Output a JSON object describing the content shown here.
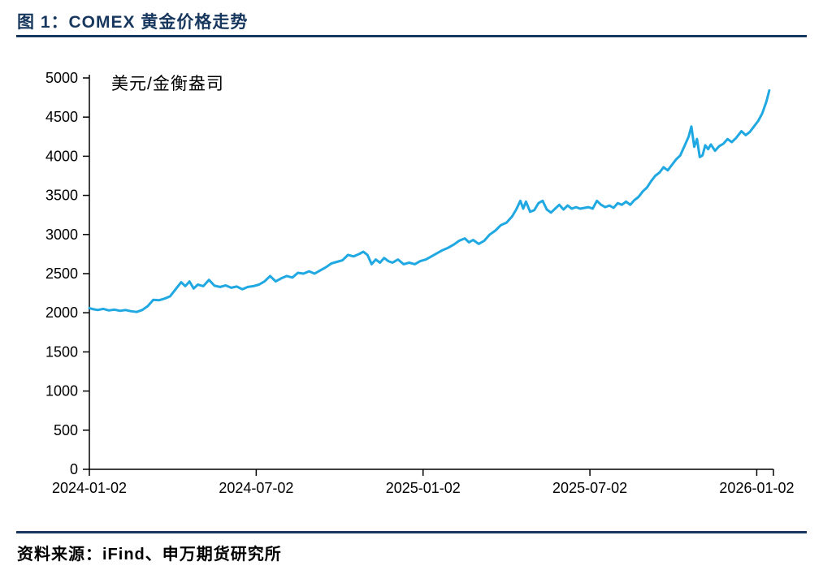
{
  "page": {
    "title": "图 1：COMEX 黄金价格走势",
    "source": "资料来源：iFind、申万期货研究所"
  },
  "chart_data": {
    "type": "line",
    "title": "图 1：COMEX 黄金价格走势",
    "unit_label": "美元/金衡盎司",
    "xlabel": "",
    "ylabel": "美元/金衡盎司",
    "ylim": [
      0,
      5000
    ],
    "y_ticks": [
      0,
      500,
      1000,
      1500,
      2000,
      2500,
      3000,
      3500,
      4000,
      4500,
      5000
    ],
    "xlim_months": [
      0,
      24.6
    ],
    "x_ticks": [
      {
        "t": 0,
        "label": "2024-01-02"
      },
      {
        "t": 6,
        "label": "2024-07-02"
      },
      {
        "t": 12,
        "label": "2025-01-02"
      },
      {
        "t": 18,
        "label": "2025-07-02"
      },
      {
        "t": 24,
        "label": "2026-01-02"
      }
    ],
    "grid": false,
    "legend_position": "none",
    "line_color": "#1FA8E1",
    "axis_color": "#000000",
    "series": [
      {
        "name": "COMEX黄金价格",
        "points": [
          [
            0.0,
            2060
          ],
          [
            0.15,
            2045
          ],
          [
            0.3,
            2035
          ],
          [
            0.5,
            2050
          ],
          [
            0.7,
            2030
          ],
          [
            0.9,
            2040
          ],
          [
            1.1,
            2025
          ],
          [
            1.3,
            2035
          ],
          [
            1.5,
            2020
          ],
          [
            1.7,
            2010
          ],
          [
            1.9,
            2035
          ],
          [
            2.1,
            2085
          ],
          [
            2.3,
            2165
          ],
          [
            2.5,
            2160
          ],
          [
            2.7,
            2180
          ],
          [
            2.9,
            2210
          ],
          [
            3.1,
            2300
          ],
          [
            3.3,
            2390
          ],
          [
            3.45,
            2340
          ],
          [
            3.6,
            2400
          ],
          [
            3.75,
            2310
          ],
          [
            3.9,
            2360
          ],
          [
            4.1,
            2340
          ],
          [
            4.3,
            2420
          ],
          [
            4.5,
            2345
          ],
          [
            4.7,
            2330
          ],
          [
            4.9,
            2350
          ],
          [
            5.1,
            2320
          ],
          [
            5.3,
            2335
          ],
          [
            5.5,
            2300
          ],
          [
            5.7,
            2330
          ],
          [
            5.9,
            2340
          ],
          [
            6.1,
            2360
          ],
          [
            6.3,
            2400
          ],
          [
            6.5,
            2470
          ],
          [
            6.7,
            2400
          ],
          [
            6.9,
            2440
          ],
          [
            7.1,
            2470
          ],
          [
            7.3,
            2450
          ],
          [
            7.5,
            2510
          ],
          [
            7.7,
            2500
          ],
          [
            7.9,
            2530
          ],
          [
            8.1,
            2500
          ],
          [
            8.3,
            2540
          ],
          [
            8.5,
            2580
          ],
          [
            8.7,
            2630
          ],
          [
            8.9,
            2650
          ],
          [
            9.1,
            2670
          ],
          [
            9.3,
            2740
          ],
          [
            9.5,
            2720
          ],
          [
            9.7,
            2750
          ],
          [
            9.85,
            2780
          ],
          [
            10.0,
            2740
          ],
          [
            10.15,
            2620
          ],
          [
            10.3,
            2680
          ],
          [
            10.45,
            2640
          ],
          [
            10.6,
            2700
          ],
          [
            10.75,
            2660
          ],
          [
            10.9,
            2640
          ],
          [
            11.1,
            2680
          ],
          [
            11.3,
            2620
          ],
          [
            11.5,
            2640
          ],
          [
            11.7,
            2620
          ],
          [
            11.9,
            2660
          ],
          [
            12.1,
            2680
          ],
          [
            12.3,
            2720
          ],
          [
            12.5,
            2760
          ],
          [
            12.7,
            2800
          ],
          [
            12.9,
            2830
          ],
          [
            13.1,
            2870
          ],
          [
            13.3,
            2920
          ],
          [
            13.5,
            2950
          ],
          [
            13.65,
            2900
          ],
          [
            13.8,
            2930
          ],
          [
            14.0,
            2880
          ],
          [
            14.2,
            2920
          ],
          [
            14.4,
            3000
          ],
          [
            14.6,
            3050
          ],
          [
            14.8,
            3120
          ],
          [
            15.0,
            3150
          ],
          [
            15.2,
            3230
          ],
          [
            15.35,
            3320
          ],
          [
            15.5,
            3430
          ],
          [
            15.6,
            3330
          ],
          [
            15.7,
            3420
          ],
          [
            15.85,
            3290
          ],
          [
            16.0,
            3310
          ],
          [
            16.15,
            3400
          ],
          [
            16.3,
            3430
          ],
          [
            16.45,
            3320
          ],
          [
            16.6,
            3280
          ],
          [
            16.75,
            3330
          ],
          [
            16.9,
            3380
          ],
          [
            17.05,
            3320
          ],
          [
            17.2,
            3370
          ],
          [
            17.35,
            3330
          ],
          [
            17.5,
            3350
          ],
          [
            17.65,
            3330
          ],
          [
            17.8,
            3340
          ],
          [
            17.95,
            3350
          ],
          [
            18.1,
            3330
          ],
          [
            18.25,
            3430
          ],
          [
            18.4,
            3380
          ],
          [
            18.55,
            3350
          ],
          [
            18.7,
            3370
          ],
          [
            18.85,
            3340
          ],
          [
            19.0,
            3400
          ],
          [
            19.15,
            3380
          ],
          [
            19.3,
            3420
          ],
          [
            19.45,
            3380
          ],
          [
            19.6,
            3440
          ],
          [
            19.75,
            3480
          ],
          [
            19.9,
            3550
          ],
          [
            20.05,
            3600
          ],
          [
            20.2,
            3680
          ],
          [
            20.35,
            3750
          ],
          [
            20.5,
            3790
          ],
          [
            20.65,
            3860
          ],
          [
            20.8,
            3820
          ],
          [
            20.95,
            3890
          ],
          [
            21.1,
            3960
          ],
          [
            21.25,
            4010
          ],
          [
            21.4,
            4130
          ],
          [
            21.55,
            4250
          ],
          [
            21.65,
            4380
          ],
          [
            21.75,
            4120
          ],
          [
            21.85,
            4220
          ],
          [
            21.95,
            3990
          ],
          [
            22.05,
            4010
          ],
          [
            22.15,
            4140
          ],
          [
            22.25,
            4090
          ],
          [
            22.35,
            4150
          ],
          [
            22.5,
            4070
          ],
          [
            22.65,
            4130
          ],
          [
            22.8,
            4160
          ],
          [
            22.95,
            4220
          ],
          [
            23.1,
            4180
          ],
          [
            23.25,
            4230
          ],
          [
            23.45,
            4320
          ],
          [
            23.6,
            4270
          ],
          [
            23.75,
            4310
          ],
          [
            23.9,
            4380
          ],
          [
            24.05,
            4450
          ],
          [
            24.2,
            4550
          ],
          [
            24.35,
            4700
          ],
          [
            24.45,
            4840
          ]
        ]
      }
    ]
  }
}
